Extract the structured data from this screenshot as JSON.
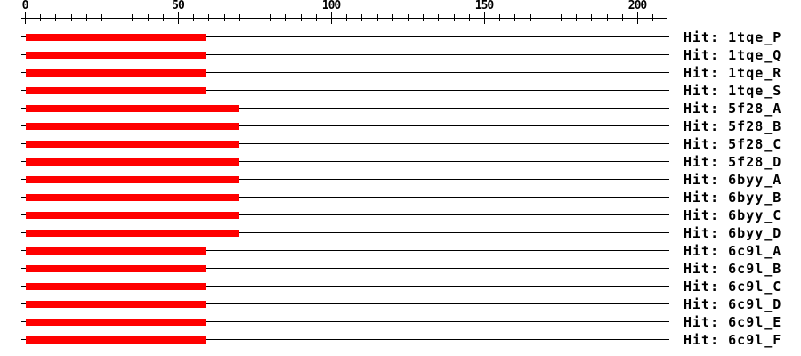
{
  "chart_data": {
    "type": "bar",
    "orientation": "horizontal",
    "title": "",
    "xlabel": "",
    "ylabel": "",
    "grid": false,
    "legend_position": "none",
    "bar_color": "#ff0000",
    "line_color": "#000000",
    "text_color": "#000000",
    "background_color": "#ffffff",
    "axis": {
      "min": 0,
      "max": 210,
      "major_ticks": [
        0,
        50,
        100,
        150,
        200
      ],
      "major_tick_labels": [
        "0",
        "50",
        "100",
        "150",
        "200"
      ],
      "minor_tick_step": 5,
      "minor_tick_end": 205
    },
    "query_extent": 210,
    "label_prefix": "Hit: ",
    "rows": [
      {
        "label": "Hit: 1tqe_P",
        "start": 0,
        "end": 59
      },
      {
        "label": "Hit: 1tqe_Q",
        "start": 0,
        "end": 59
      },
      {
        "label": "Hit: 1tqe_R",
        "start": 0,
        "end": 59
      },
      {
        "label": "Hit: 1tqe_S",
        "start": 0,
        "end": 59
      },
      {
        "label": "Hit: 5f28_A",
        "start": 0,
        "end": 70
      },
      {
        "label": "Hit: 5f28_B",
        "start": 0,
        "end": 70
      },
      {
        "label": "Hit: 5f28_C",
        "start": 0,
        "end": 70
      },
      {
        "label": "Hit: 5f28_D",
        "start": 0,
        "end": 70
      },
      {
        "label": "Hit: 6byy_A",
        "start": 0,
        "end": 70
      },
      {
        "label": "Hit: 6byy_B",
        "start": 0,
        "end": 70
      },
      {
        "label": "Hit: 6byy_C",
        "start": 0,
        "end": 70
      },
      {
        "label": "Hit: 6byy_D",
        "start": 0,
        "end": 70
      },
      {
        "label": "Hit: 6c9l_A",
        "start": 0,
        "end": 59
      },
      {
        "label": "Hit: 6c9l_B",
        "start": 0,
        "end": 59
      },
      {
        "label": "Hit: 6c9l_C",
        "start": 0,
        "end": 59
      },
      {
        "label": "Hit: 6c9l_D",
        "start": 0,
        "end": 59
      },
      {
        "label": "Hit: 6c9l_E",
        "start": 0,
        "end": 59
      },
      {
        "label": "Hit: 6c9l_F",
        "start": 0,
        "end": 59
      }
    ]
  }
}
